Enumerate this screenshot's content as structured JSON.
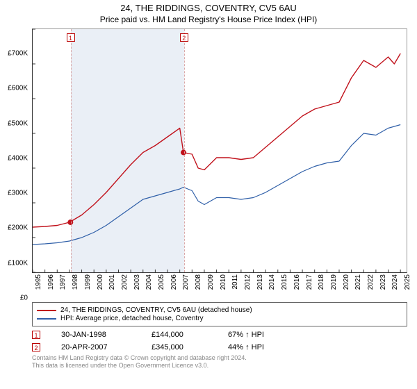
{
  "title": {
    "main": "24, THE RIDDINGS, COVENTRY, CV5 6AU",
    "sub": "Price paid vs. HM Land Registry's House Price Index (HPI)",
    "main_fontsize": 13,
    "sub_fontsize": 12
  },
  "chart": {
    "type": "line",
    "background_color": "#ffffff",
    "plot_border_color": "#333333",
    "shade_band_color": "#eaeff6",
    "sale_line_color": "#d9a8a8",
    "x": {
      "years": [
        1995,
        1996,
        1997,
        1998,
        1999,
        2000,
        2001,
        2002,
        2003,
        2004,
        2005,
        2006,
        2007,
        2008,
        2009,
        2010,
        2011,
        2012,
        2013,
        2014,
        2015,
        2016,
        2017,
        2018,
        2019,
        2020,
        2021,
        2022,
        2023,
        2024,
        2025
      ],
      "min": 1995,
      "max": 2025.5,
      "label_fontsize": 10
    },
    "y": {
      "ticks": [
        0,
        100000,
        200000,
        300000,
        400000,
        500000,
        600000,
        700000
      ],
      "tick_labels": [
        "£0",
        "£100K",
        "£200K",
        "£300K",
        "£400K",
        "£500K",
        "£600K",
        "£700K"
      ],
      "min": 0,
      "max": 700000,
      "label_fontsize": 10
    },
    "series": [
      {
        "name": "24, THE RIDDINGS, COVENTRY, CV5 6AU (detached house)",
        "color": "#c1121c",
        "line_width": 1.4,
        "points_x": [
          1995,
          1996,
          1997,
          1998,
          1999,
          2000,
          2001,
          2002,
          2003,
          2004,
          2005,
          2006,
          2007,
          2007.3,
          2008,
          2008.5,
          2009,
          2010,
          2011,
          2012,
          2013,
          2014,
          2015,
          2016,
          2017,
          2018,
          2019,
          2020,
          2021,
          2022,
          2023,
          2024,
          2024.5,
          2025
        ],
        "points_y": [
          130000,
          132000,
          135000,
          144000,
          165000,
          195000,
          230000,
          270000,
          310000,
          345000,
          365000,
          390000,
          415000,
          345000,
          340000,
          300000,
          295000,
          330000,
          330000,
          325000,
          330000,
          360000,
          390000,
          420000,
          450000,
          470000,
          480000,
          490000,
          560000,
          610000,
          590000,
          620000,
          600000,
          630000
        ]
      },
      {
        "name": "HPI: Average price, detached house, Coventry",
        "color": "#2f5fa8",
        "line_width": 1.2,
        "points_x": [
          1995,
          1996,
          1997,
          1998,
          1999,
          2000,
          2001,
          2002,
          2003,
          2004,
          2005,
          2006,
          2007,
          2007.3,
          2008,
          2008.5,
          2009,
          2010,
          2011,
          2012,
          2013,
          2014,
          2015,
          2016,
          2017,
          2018,
          2019,
          2020,
          2021,
          2022,
          2023,
          2024,
          2025
        ],
        "points_y": [
          80000,
          82000,
          85000,
          90000,
          100000,
          115000,
          135000,
          160000,
          185000,
          210000,
          220000,
          230000,
          240000,
          245000,
          235000,
          205000,
          195000,
          215000,
          215000,
          210000,
          215000,
          230000,
          250000,
          270000,
          290000,
          305000,
          315000,
          320000,
          365000,
          400000,
          395000,
          415000,
          425000
        ]
      }
    ],
    "sales": [
      {
        "n": "1",
        "year": 1998.08,
        "price": 144000
      },
      {
        "n": "2",
        "year": 2007.3,
        "price": 345000
      }
    ]
  },
  "legend": {
    "items": [
      {
        "color": "#c1121c",
        "label": "24, THE RIDDINGS, COVENTRY, CV5 6AU (detached house)"
      },
      {
        "color": "#2f5fa8",
        "label": "HPI: Average price, detached house, Coventry"
      }
    ]
  },
  "sales_table": [
    {
      "n": "1",
      "date": "30-JAN-1998",
      "price": "£144,000",
      "hpi": "67% ↑ HPI"
    },
    {
      "n": "2",
      "date": "20-APR-2007",
      "price": "£345,000",
      "hpi": "44% ↑ HPI"
    }
  ],
  "footer": {
    "line1": "Contains HM Land Registry data © Crown copyright and database right 2024.",
    "line2": "This data is licensed under the Open Government Licence v3.0."
  }
}
